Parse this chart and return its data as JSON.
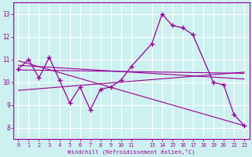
{
  "xlabel": "Windchill (Refroidissement éolien,°C)",
  "bg_color": "#cdf0f0",
  "grid_color": "#ffffff",
  "line_color": "#990099",
  "xlim": [
    -0.5,
    22.5
  ],
  "ylim": [
    7.5,
    13.5
  ],
  "xticks": [
    0,
    1,
    2,
    3,
    4,
    5,
    6,
    7,
    8,
    9,
    10,
    11,
    13,
    14,
    15,
    16,
    17,
    18,
    19,
    20,
    21,
    22
  ],
  "yticks": [
    8,
    9,
    10,
    11,
    12,
    13
  ],
  "main_line": {
    "x": [
      0,
      1,
      2,
      3,
      4,
      5,
      6,
      7,
      8,
      9,
      10,
      11,
      13,
      14,
      15,
      16,
      17,
      19,
      20,
      21,
      22
    ],
    "y": [
      10.6,
      11.0,
      10.2,
      11.1,
      10.1,
      9.1,
      9.8,
      8.8,
      9.7,
      9.8,
      10.1,
      10.7,
      11.7,
      13.0,
      12.5,
      12.4,
      12.1,
      10.0,
      9.9,
      8.6,
      8.1
    ]
  },
  "trend1": {
    "x": [
      0,
      22
    ],
    "y": [
      10.75,
      10.15
    ]
  },
  "trend2": {
    "x": [
      0,
      22
    ],
    "y": [
      10.55,
      10.4
    ]
  },
  "trend3": {
    "x": [
      0,
      22
    ],
    "y": [
      9.65,
      10.45
    ]
  },
  "trend4": {
    "x": [
      0,
      22
    ],
    "y": [
      10.95,
      8.1
    ]
  }
}
